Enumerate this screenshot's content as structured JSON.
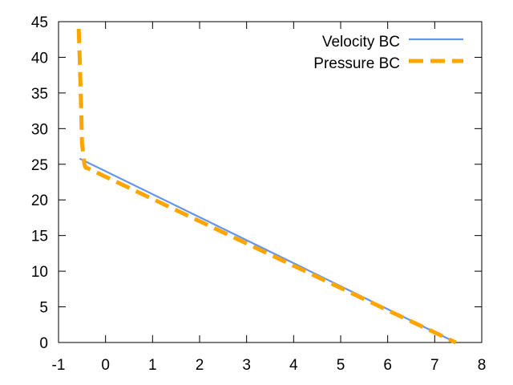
{
  "chart_data": {
    "type": "line",
    "title": "",
    "xlabel": "",
    "ylabel": "",
    "xlim": [
      -1,
      8
    ],
    "ylim": [
      0,
      45
    ],
    "xticks": [
      -1,
      0,
      1,
      2,
      3,
      4,
      5,
      6,
      7,
      8
    ],
    "yticks": [
      0,
      5,
      10,
      15,
      20,
      25,
      30,
      35,
      40,
      45
    ],
    "xtick_labels": [
      "-1",
      "0",
      "1",
      "2",
      "3",
      "4",
      "5",
      "6",
      "7",
      "8"
    ],
    "ytick_labels": [
      "0",
      "5",
      "10",
      "15",
      "20",
      "25",
      "30",
      "35",
      "40",
      "45"
    ],
    "grid": false,
    "legend_position": "top-right",
    "series": [
      {
        "name": "Velocity BC",
        "color": "#6495ed",
        "style": "solid",
        "x": [
          -0.55,
          7.45
        ],
        "y": [
          25.8,
          0
        ]
      },
      {
        "name": "Pressure BC",
        "color": "#ffa500",
        "style": "dashed",
        "x": [
          -0.57,
          -0.55,
          -0.52,
          -0.5,
          -0.45,
          -0.42,
          -0.4,
          7.45
        ],
        "y": [
          44,
          40,
          33,
          28,
          25,
          24.5,
          24.5,
          0
        ]
      }
    ]
  }
}
